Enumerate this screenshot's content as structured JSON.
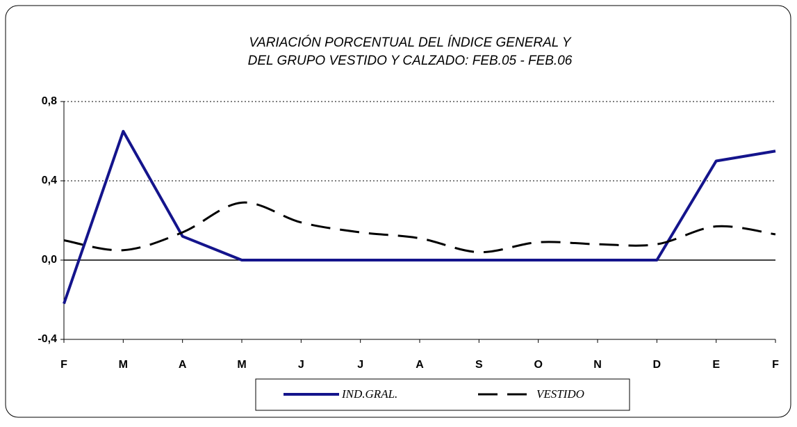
{
  "chart_data": {
    "type": "line",
    "title": [
      "VARIACIÓN PORCENTUAL DEL ÍNDICE GENERAL Y",
      "DEL GRUPO VESTIDO Y CALZADO:  FEB.05 - FEB.06"
    ],
    "categories": [
      "F",
      "M",
      "A",
      "M",
      "J",
      "J",
      "A",
      "S",
      "O",
      "N",
      "D",
      "E",
      "F"
    ],
    "series": [
      {
        "name": "IND.GRAL.",
        "color": "#14148c",
        "dash": false,
        "values": [
          -0.22,
          0.65,
          0.12,
          0,
          0,
          0,
          0,
          0,
          0,
          0,
          0,
          0.5,
          0.55
        ]
      },
      {
        "name": "VESTIDO",
        "color": "#000000",
        "dash": true,
        "values": [
          0.1,
          0.05,
          0.14,
          0.29,
          0.19,
          0.14,
          0.11,
          0.04,
          0.09,
          0.08,
          0.08,
          0.17,
          0.13
        ]
      }
    ],
    "ylim": [
      -0.4,
      0.8
    ],
    "yticks": [
      {
        "value": -0.4,
        "label": "-0,4"
      },
      {
        "value": 0,
        "label": "0,0"
      },
      {
        "value": 0.4,
        "label": "0,4"
      },
      {
        "value": 0.8,
        "label": "0,8"
      }
    ],
    "grid": true,
    "legend": "bottom"
  }
}
